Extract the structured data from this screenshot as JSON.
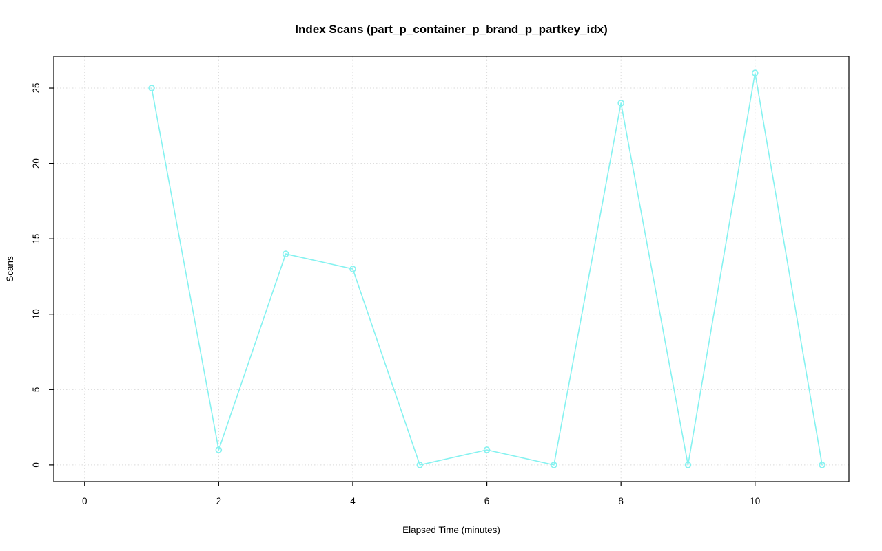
{
  "chart_data": {
    "type": "line",
    "title": "Index Scans (part_p_container_p_brand_p_partkey_idx)",
    "xlabel": "Elapsed Time (minutes)",
    "ylabel": "Scans",
    "x": [
      1,
      2,
      3,
      4,
      5,
      6,
      7,
      8,
      9,
      10,
      11
    ],
    "y": [
      25,
      1,
      14,
      13,
      0,
      1,
      0,
      24,
      0,
      26,
      0
    ],
    "x_ticks": [
      0,
      2,
      4,
      6,
      8,
      10
    ],
    "y_ticks": [
      0,
      5,
      10,
      15,
      20,
      25
    ],
    "xlim": [
      -0.46,
      11.4
    ],
    "ylim": [
      -1.1,
      27.1
    ],
    "grid": true,
    "legend": "none",
    "line_color": "#85f2f0",
    "marker": "circle-open",
    "grid_color": "#d9d9d9",
    "axis_color": "#000000",
    "background": "#ffffff"
  }
}
